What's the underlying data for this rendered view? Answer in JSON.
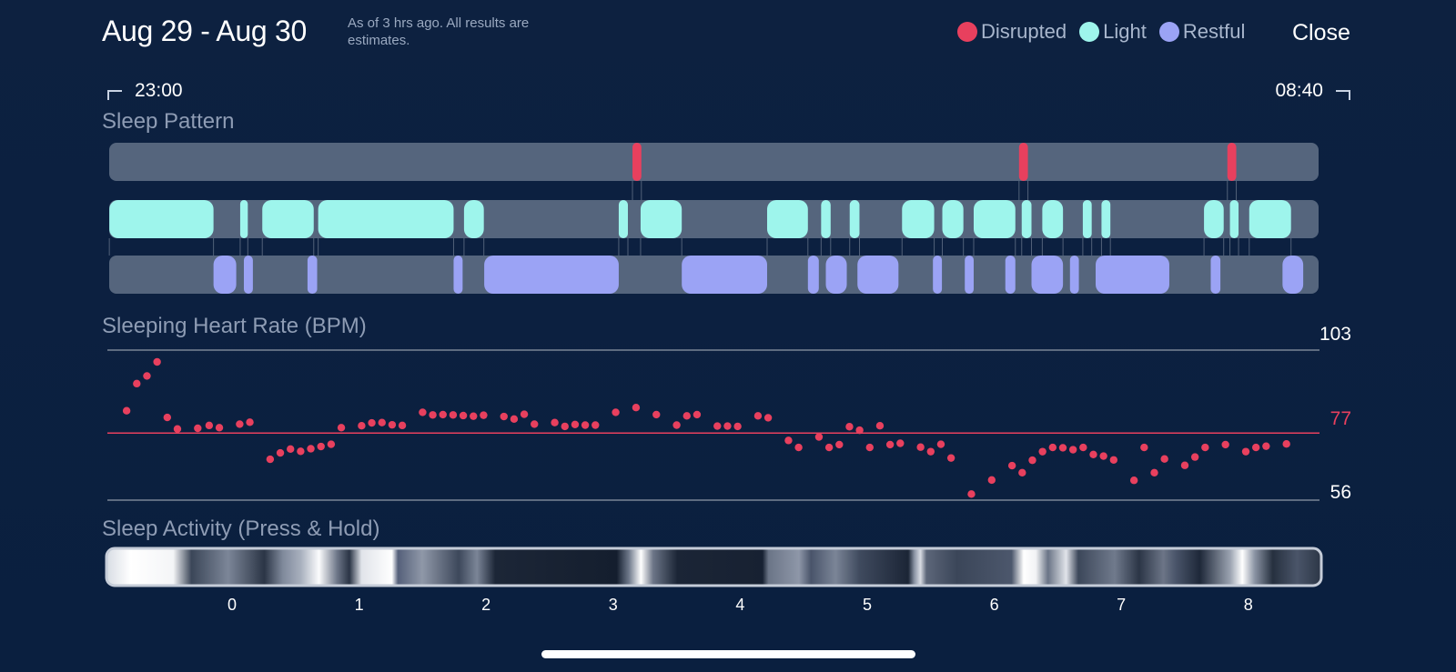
{
  "header": {
    "title": "Aug 29 - Aug 30",
    "subtitle": "As of 3 hrs ago. All results are estimates.",
    "close_label": "Close"
  },
  "legend": [
    {
      "label": "Disrupted",
      "color": "#e8405e"
    },
    {
      "label": "Light",
      "color": "#9ef5ec"
    },
    {
      "label": "Restful",
      "color": "#9ba3f5"
    }
  ],
  "timeline": {
    "start": "23:00",
    "end": "08:40"
  },
  "sleep_pattern": {
    "label": "Sleep Pattern",
    "track_color": "#55657d",
    "disrupted": [
      [
        3.152,
        3.222
      ],
      [
        6.195,
        6.265
      ],
      [
        7.835,
        7.905
      ]
    ],
    "light": [
      [
        -0.966,
        -0.146
      ],
      [
        0.064,
        0.124
      ],
      [
        0.238,
        0.643
      ],
      [
        0.678,
        1.744
      ],
      [
        1.826,
        1.982
      ],
      [
        3.044,
        3.116
      ],
      [
        3.216,
        3.54
      ],
      [
        4.212,
        4.533
      ],
      [
        4.637,
        4.712
      ],
      [
        4.862,
        4.939
      ],
      [
        5.274,
        5.527
      ],
      [
        5.591,
        5.757
      ],
      [
        5.838,
        6.166
      ],
      [
        6.216,
        6.293
      ],
      [
        6.378,
        6.541
      ],
      [
        6.697,
        6.767
      ],
      [
        6.844,
        6.914
      ],
      [
        7.651,
        7.806
      ],
      [
        7.855,
        7.923
      ],
      [
        8.007,
        8.336
      ]
    ],
    "restful": [
      [
        -0.146,
        0.033
      ],
      [
        0.093,
        0.164
      ],
      [
        0.594,
        0.67
      ],
      [
        1.744,
        1.815
      ],
      [
        1.985,
        3.044
      ],
      [
        3.54,
        4.212
      ],
      [
        4.533,
        4.619
      ],
      [
        4.674,
        4.839
      ],
      [
        4.923,
        5.246
      ],
      [
        5.517,
        5.588
      ],
      [
        5.768,
        5.838
      ],
      [
        6.087,
        6.166
      ],
      [
        6.293,
        6.541
      ],
      [
        6.596,
        6.666
      ],
      [
        6.798,
        7.378
      ],
      [
        7.704,
        7.78
      ],
      [
        8.269,
        8.432
      ]
    ]
  },
  "heart_rate": {
    "label": "Sleeping Heart Rate (BPM)",
    "max_label": "103",
    "avg_label": "77",
    "min_label": "56",
    "max": 103,
    "avg": 77,
    "min": 56,
    "points": [
      [
        -0.83,
        84.0
      ],
      [
        -0.75,
        92.5
      ],
      [
        -0.67,
        94.9
      ],
      [
        -0.59,
        99.3
      ],
      [
        -0.51,
        81.9
      ],
      [
        -0.43,
        78.3
      ],
      [
        -0.27,
        78.5
      ],
      [
        -0.18,
        79.4
      ],
      [
        -0.1,
        78.7
      ],
      [
        0.06,
        79.8
      ],
      [
        0.14,
        80.4
      ],
      [
        0.3,
        68.8
      ],
      [
        0.38,
        70.8
      ],
      [
        0.46,
        72.0
      ],
      [
        0.54,
        71.3
      ],
      [
        0.62,
        72.1
      ],
      [
        0.7,
        72.8
      ],
      [
        0.78,
        73.5
      ],
      [
        0.86,
        78.7
      ],
      [
        1.02,
        79.3
      ],
      [
        1.1,
        80.2
      ],
      [
        1.18,
        80.3
      ],
      [
        1.26,
        79.6
      ],
      [
        1.34,
        79.4
      ],
      [
        1.5,
        83.5
      ],
      [
        1.58,
        82.7
      ],
      [
        1.66,
        82.8
      ],
      [
        1.74,
        82.7
      ],
      [
        1.82,
        82.5
      ],
      [
        1.9,
        82.3
      ],
      [
        1.98,
        82.6
      ],
      [
        2.14,
        82.2
      ],
      [
        2.22,
        81.4
      ],
      [
        2.3,
        82.9
      ],
      [
        2.38,
        79.8
      ],
      [
        2.54,
        80.3
      ],
      [
        2.62,
        79.1
      ],
      [
        2.7,
        79.7
      ],
      [
        2.78,
        79.5
      ],
      [
        2.86,
        79.5
      ],
      [
        3.02,
        83.5
      ],
      [
        3.18,
        85.0
      ],
      [
        3.34,
        82.8
      ],
      [
        3.5,
        79.5
      ],
      [
        3.58,
        82.4
      ],
      [
        3.66,
        82.8
      ],
      [
        3.82,
        79.2
      ],
      [
        3.9,
        79.2
      ],
      [
        3.98,
        79.1
      ],
      [
        4.14,
        82.4
      ],
      [
        4.22,
        81.8
      ],
      [
        4.38,
        74.7
      ],
      [
        4.46,
        72.5
      ],
      [
        4.62,
        75.8
      ],
      [
        4.7,
        72.5
      ],
      [
        4.78,
        73.4
      ],
      [
        4.86,
        79.0
      ],
      [
        4.94,
        77.9
      ],
      [
        5.02,
        72.5
      ],
      [
        5.1,
        79.3
      ],
      [
        5.18,
        73.4
      ],
      [
        5.26,
        73.8
      ],
      [
        5.42,
        72.6
      ],
      [
        5.5,
        71.2
      ],
      [
        5.58,
        73.5
      ],
      [
        5.66,
        69.2
      ],
      [
        5.82,
        57.9
      ],
      [
        5.98,
        62.3
      ],
      [
        6.14,
        66.8
      ],
      [
        6.22,
        64.6
      ],
      [
        6.3,
        68.5
      ],
      [
        6.38,
        71.2
      ],
      [
        6.46,
        72.5
      ],
      [
        6.54,
        72.4
      ],
      [
        6.62,
        71.8
      ],
      [
        6.7,
        72.5
      ],
      [
        6.78,
        70.3
      ],
      [
        6.86,
        69.8
      ],
      [
        6.94,
        68.6
      ],
      [
        7.1,
        62.2
      ],
      [
        7.18,
        72.5
      ],
      [
        7.26,
        64.6
      ],
      [
        7.34,
        68.9
      ],
      [
        7.5,
        66.9
      ],
      [
        7.58,
        69.5
      ],
      [
        7.66,
        72.5
      ],
      [
        7.82,
        73.4
      ],
      [
        7.98,
        71.2
      ],
      [
        8.06,
        72.5
      ],
      [
        8.14,
        72.9
      ],
      [
        8.3,
        73.6
      ]
    ]
  },
  "sleep_activity": {
    "label": "Sleep Activity (Press & Hold)",
    "axis_ticks": [
      "0",
      "1",
      "2",
      "3",
      "4",
      "5",
      "6",
      "7",
      "8"
    ]
  }
}
